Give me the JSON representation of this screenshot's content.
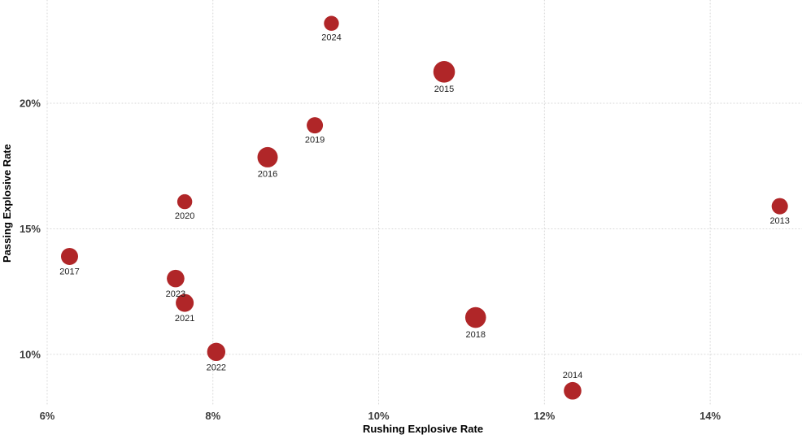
{
  "chart_data": {
    "type": "scatter",
    "title": "",
    "xlabel": "Rushing Explosive Rate",
    "ylabel": "Passing Explosive Rate",
    "x_tick_values": [
      6,
      8,
      10,
      12,
      14
    ],
    "x_tick_labels": [
      "6%",
      "8%",
      "10%",
      "12%",
      "14%"
    ],
    "y_tick_values": [
      10,
      15,
      20
    ],
    "y_tick_labels": [
      "10%",
      "15%",
      "20%"
    ],
    "xlim": [
      5.431,
      15.108
    ],
    "ylim": [
      8.25,
      24.11
    ],
    "grid": "dotted light-gray gridlines on both axes, no solid axis lines",
    "legend": "none",
    "units": "percent",
    "points": [
      {
        "label": "2013",
        "x": 14.84,
        "y": 15.9,
        "r": 10.0,
        "label_pos": "below"
      },
      {
        "label": "2014",
        "x": 12.34,
        "y": 8.55,
        "r": 10.8,
        "label_pos": "above"
      },
      {
        "label": "2015",
        "x": 10.79,
        "y": 21.25,
        "r": 13.3,
        "label_pos": "below"
      },
      {
        "label": "2016",
        "x": 8.66,
        "y": 17.85,
        "r": 12.5,
        "label_pos": "below"
      },
      {
        "label": "2017",
        "x": 6.27,
        "y": 13.9,
        "r": 10.5,
        "label_pos": "below"
      },
      {
        "label": "2018",
        "x": 11.17,
        "y": 11.47,
        "r": 12.8,
        "label_pos": "below"
      },
      {
        "label": "2019",
        "x": 9.23,
        "y": 19.12,
        "r": 10.0,
        "label_pos": "below"
      },
      {
        "label": "2020",
        "x": 7.66,
        "y": 16.08,
        "r": 9.2,
        "label_pos": "below"
      },
      {
        "label": "2021",
        "x": 7.66,
        "y": 12.05,
        "r": 11.0,
        "label_pos": "below"
      },
      {
        "label": "2022",
        "x": 8.04,
        "y": 10.1,
        "r": 11.2,
        "label_pos": "below"
      },
      {
        "label": "2023",
        "x": 7.55,
        "y": 13.02,
        "r": 10.8,
        "label_pos": "below"
      },
      {
        "label": "2024",
        "x": 9.43,
        "y": 23.18,
        "r": 9.2,
        "label_pos": "below"
      }
    ],
    "colors": {
      "point_fill": "#B02628",
      "tick_text": "#3C3C3C",
      "axis_title_text": "#3C3C3C",
      "point_label_text": "#1E1E1E",
      "gridline": "#D6D6D6",
      "background": "#FFFFFF"
    }
  }
}
